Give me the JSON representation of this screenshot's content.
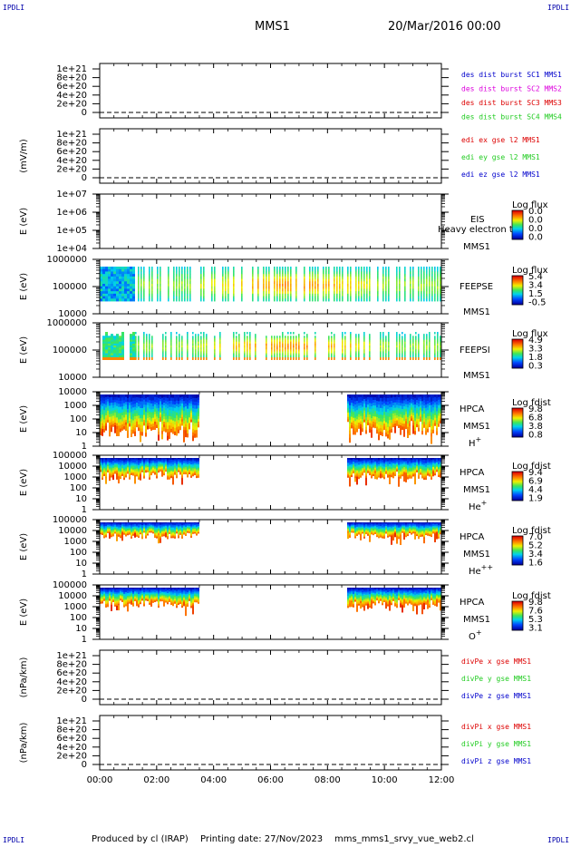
{
  "corners": {
    "tl": "IPDLI",
    "tr": "IPDLI",
    "bl": "IPDLI",
    "br": "IPDLI"
  },
  "header": {
    "mission": "MMS1",
    "date": "20/Mar/2016 00:00"
  },
  "footer": {
    "produced_by": "Produced by cl (IRAP)",
    "printing_date": "Printing date: 27/Nov/2023",
    "script": "mms_mms1_srvy_vue_web2.cl"
  },
  "x_axis": {
    "ticks": [
      "00:00",
      "02:00",
      "04:00",
      "06:00",
      "08:00",
      "10:00",
      "12:00"
    ],
    "range_hours": [
      0,
      12
    ]
  },
  "colors": {
    "black": "#000000",
    "red": "#dd0000",
    "green": "#22cc22",
    "blue": "#0000cc",
    "magenta": "#dd00dd"
  },
  "chart_data": [
    {
      "type": "line",
      "ylabel": "",
      "yticks": [
        "1e+21",
        "8e+20",
        "6e+20",
        "4e+20",
        "2e+20",
        "0"
      ],
      "ylim": [
        0,
        1.05e+21
      ],
      "legend": [
        {
          "text": "des dist burst SC1 MMS1",
          "color": "#0000cc"
        },
        {
          "text": "des dist burst SC2 MMS2",
          "color": "#dd00dd"
        },
        {
          "text": "des dist burst SC3 MMS3",
          "color": "#dd0000"
        },
        {
          "text": "des dist burst SC4 MMS4",
          "color": "#22cc22"
        }
      ]
    },
    {
      "type": "line",
      "ylabel": "(mV/m)",
      "yticks": [
        "1e+21",
        "8e+20",
        "6e+20",
        "4e+20",
        "2e+20",
        "0"
      ],
      "ylim": [
        0,
        1.05e+21
      ],
      "legend": [
        {
          "text": "edi ex gse l2 MMS1",
          "color": "#dd0000"
        },
        {
          "text": "edi ey gse l2 MMS1",
          "color": "#22cc22"
        },
        {
          "text": "edi ez gse l2 MMS1",
          "color": "#0000cc"
        }
      ]
    },
    {
      "type": "heatmap",
      "ylabel": "E (eV)",
      "yticks": [
        "1e+07",
        "1e+06",
        "1e+05",
        "1e+04"
      ],
      "yscale": "log",
      "instrument": "EIS",
      "mission": "MMS1",
      "overlay_text": "Heavy electron to",
      "colorbar": {
        "title": "Log flux",
        "values": [
          "0.0",
          "0.0",
          "0.0",
          "0.0"
        ]
      }
    },
    {
      "type": "heatmap",
      "ylabel": "E (eV)",
      "yticks": [
        "1000000",
        "100000",
        "10000"
      ],
      "yscale": "log",
      "instrument": "FEEPSE",
      "mission": "MMS1",
      "colorbar": {
        "title": "Log flux",
        "values": [
          "5.4",
          "3.4",
          "1.5",
          "-0.5"
        ]
      }
    },
    {
      "type": "heatmap",
      "ylabel": "E (eV)",
      "yticks": [
        "1000000",
        "100000",
        "10000"
      ],
      "yscale": "log",
      "instrument": "FEEPSI",
      "mission": "MMS1",
      "colorbar": {
        "title": "Log flux",
        "values": [
          "4.9",
          "3.3",
          "1.8",
          "0.3"
        ]
      }
    },
    {
      "type": "heatmap",
      "ylabel": "E (eV)",
      "yticks": [
        "10000",
        "1000",
        "100",
        "10",
        "1"
      ],
      "yscale": "log",
      "instrument": "HPCA",
      "mission": "MMS1",
      "species": "H",
      "charge": "+",
      "colorbar": {
        "title": "Log fdist",
        "values": [
          "9.8",
          "6.8",
          "3.8",
          "0.8"
        ]
      }
    },
    {
      "type": "heatmap",
      "ylabel": "E (eV)",
      "yticks": [
        "100000",
        "10000",
        "1000",
        "100",
        "10",
        "1"
      ],
      "yscale": "log",
      "instrument": "HPCA",
      "mission": "MMS1",
      "species": "He",
      "charge": "+",
      "colorbar": {
        "title": "Log fdist",
        "values": [
          "9.4",
          "6.9",
          "4.4",
          "1.9"
        ]
      }
    },
    {
      "type": "heatmap",
      "ylabel": "E (eV)",
      "yticks": [
        "100000",
        "10000",
        "1000",
        "100",
        "10",
        "1"
      ],
      "yscale": "log",
      "instrument": "HPCA",
      "mission": "MMS1",
      "species": "He",
      "charge": "++",
      "colorbar": {
        "title": "Log fdist",
        "values": [
          "7.0",
          "5.2",
          "3.4",
          "1.6"
        ]
      }
    },
    {
      "type": "heatmap",
      "ylabel": "E (eV)",
      "yticks": [
        "100000",
        "10000",
        "1000",
        "100",
        "10",
        "1"
      ],
      "yscale": "log",
      "instrument": "HPCA",
      "mission": "MMS1",
      "species": "O",
      "charge": "+",
      "colorbar": {
        "title": "Log fdist",
        "values": [
          "9.8",
          "7.6",
          "5.3",
          "3.1"
        ]
      }
    },
    {
      "type": "line",
      "ylabel": "(nPa/km)",
      "yticks": [
        "1e+21",
        "8e+20",
        "6e+20",
        "4e+20",
        "2e+20",
        "0"
      ],
      "ylim": [
        0,
        1.05e+21
      ],
      "legend": [
        {
          "text": "divPe x gse MMS1",
          "color": "#dd0000"
        },
        {
          "text": "divPe y gse MMS1",
          "color": "#22cc22"
        },
        {
          "text": "divPe z gse MMS1",
          "color": "#0000cc"
        }
      ]
    },
    {
      "type": "line",
      "ylabel": "(nPa/km)",
      "yticks": [
        "1e+21",
        "8e+20",
        "6e+20",
        "4e+20",
        "2e+20",
        "0"
      ],
      "ylim": [
        0,
        1.05e+21
      ],
      "legend": [
        {
          "text": "divPi x gse MMS1",
          "color": "#dd0000"
        },
        {
          "text": "divPi y gse MMS1",
          "color": "#22cc22"
        },
        {
          "text": "divPi z gse MMS1",
          "color": "#0000cc"
        }
      ]
    }
  ]
}
